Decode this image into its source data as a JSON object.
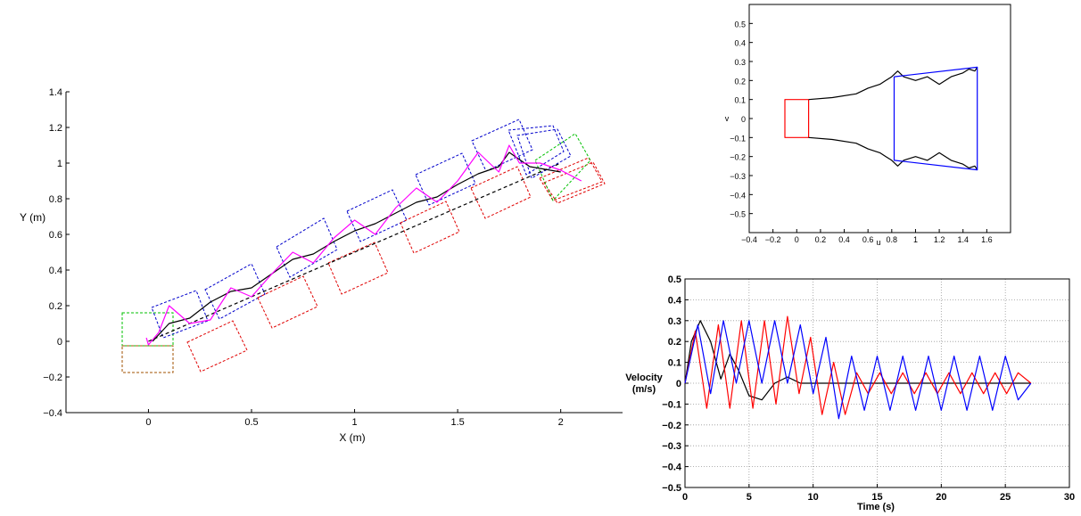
{
  "chart_data": [
    {
      "type": "line",
      "xlabel": "X (m)",
      "ylabel": "Y (m)",
      "xlim": [
        -0.4,
        2.3
      ],
      "ylim": [
        -0.4,
        1.4
      ],
      "xticks": [
        0,
        0.5,
        1,
        1.5,
        2
      ],
      "yticks": [
        -0.4,
        -0.2,
        0,
        0.2,
        0.4,
        0.6,
        0.8,
        1,
        1.2,
        1.4
      ],
      "grid": false,
      "series": [
        {
          "color": "#000000",
          "style": "solid",
          "desc": "x-y path",
          "x": [
            0.02,
            0.1,
            0.2,
            0.3,
            0.4,
            0.5,
            0.6,
            0.7,
            0.8,
            0.9,
            1.0,
            1.1,
            1.2,
            1.3,
            1.4,
            1.5,
            1.6,
            1.7,
            1.75,
            1.8,
            1.85,
            1.9,
            1.95,
            2.0
          ],
          "y": [
            0.0,
            0.1,
            0.13,
            0.22,
            0.28,
            0.3,
            0.38,
            0.46,
            0.49,
            0.56,
            0.62,
            0.66,
            0.72,
            0.78,
            0.81,
            0.88,
            0.94,
            0.98,
            1.06,
            1.02,
            0.98,
            0.97,
            0.96,
            0.95
          ]
        },
        {
          "color": "#000000",
          "style": "dashed",
          "x": [
            0.0,
            2.0
          ],
          "y": [
            0.0,
            1.0
          ]
        },
        {
          "color": "#ff00ff",
          "style": "solid",
          "x": [
            -0.01,
            0.0,
            0.05,
            0.1,
            0.2,
            0.3,
            0.4,
            0.5,
            0.6,
            0.7,
            0.8,
            0.9,
            1.0,
            1.1,
            1.2,
            1.3,
            1.4,
            1.5,
            1.6,
            1.7,
            1.75,
            1.8,
            1.9,
            2.0,
            2.1
          ],
          "y": [
            0.02,
            -0.02,
            0.05,
            0.2,
            0.1,
            0.12,
            0.3,
            0.25,
            0.38,
            0.5,
            0.44,
            0.58,
            0.68,
            0.6,
            0.75,
            0.86,
            0.78,
            0.9,
            1.06,
            0.95,
            1.1,
            1.0,
            1.0,
            0.96,
            0.9
          ]
        }
      ]
    },
    {
      "type": "line",
      "xlabel": "u",
      "ylabel": "v",
      "xlim": [
        -0.4,
        1.8
      ],
      "ylim": [
        -0.6,
        0.6
      ],
      "xticks": [
        -0.4,
        -0.2,
        0,
        0.2,
        0.4,
        0.6,
        0.8,
        1,
        1.2,
        1.4,
        1.6
      ],
      "yticks": [
        -0.5,
        -0.4,
        -0.3,
        -0.2,
        -0.1,
        0,
        0.1,
        0.2,
        0.3,
        0.4,
        0.5
      ],
      "grid": false,
      "series": [
        {
          "color": "#ff0000",
          "style": "solid",
          "x": [
            0.1,
            -0.1,
            -0.1,
            0.1,
            0.1
          ],
          "y": [
            0.1,
            0.1,
            -0.1,
            -0.1,
            0.1
          ]
        },
        {
          "color": "#000000",
          "style": "solid",
          "x": [
            0.1,
            0.3,
            0.5,
            0.6,
            0.7,
            0.75,
            0.8,
            0.85,
            0.9,
            1.0,
            1.1,
            1.2,
            1.3,
            1.4,
            1.45,
            1.5,
            1.52
          ],
          "y": [
            0.1,
            0.11,
            0.13,
            0.16,
            0.18,
            0.2,
            0.22,
            0.25,
            0.22,
            0.2,
            0.22,
            0.18,
            0.22,
            0.24,
            0.26,
            0.25,
            0.27
          ]
        },
        {
          "color": "#000000",
          "style": "solid",
          "x": [
            0.1,
            0.3,
            0.5,
            0.6,
            0.7,
            0.75,
            0.8,
            0.85,
            0.9,
            1.0,
            1.1,
            1.2,
            1.3,
            1.4,
            1.45,
            1.5,
            1.52
          ],
          "y": [
            -0.1,
            -0.11,
            -0.13,
            -0.16,
            -0.18,
            -0.2,
            -0.22,
            -0.25,
            -0.22,
            -0.2,
            -0.22,
            -0.18,
            -0.22,
            -0.24,
            -0.26,
            -0.25,
            -0.27
          ]
        },
        {
          "color": "#0000ff",
          "style": "solid",
          "x": [
            0.82,
            1.52,
            1.52,
            0.82,
            0.82
          ],
          "y": [
            0.22,
            0.27,
            -0.27,
            -0.22,
            0.22
          ]
        }
      ]
    },
    {
      "type": "line",
      "xlabel": "Time (s)",
      "ylabel": "Velocity\n(m/s)",
      "xlim": [
        0,
        30
      ],
      "ylim": [
        -0.5,
        0.5
      ],
      "xticks": [
        0,
        5,
        10,
        15,
        20,
        25,
        30
      ],
      "yticks": [
        -0.5,
        -0.4,
        -0.3,
        -0.2,
        -0.1,
        0,
        0.1,
        0.2,
        0.3,
        0.4,
        0.5
      ],
      "grid": true,
      "series": [
        {
          "color": "#000000",
          "style": "solid",
          "x": [
            0,
            0.5,
            1.2,
            2.0,
            2.8,
            3.5,
            4.2,
            5.0,
            6.0,
            7.0,
            8.0,
            9.0,
            10.0,
            12.0,
            27.0
          ],
          "y": [
            0.0,
            0.2,
            0.3,
            0.2,
            0.02,
            0.14,
            0.06,
            -0.06,
            -0.08,
            0.0,
            0.03,
            0.0,
            0.0,
            0.0,
            0.0
          ]
        },
        {
          "color": "#ff0000",
          "style": "solid",
          "x": [
            0,
            0.8,
            1.7,
            2.6,
            3.5,
            4.4,
            5.3,
            6.2,
            7.1,
            8.0,
            8.9,
            9.8,
            10.7,
            11.6,
            12.5,
            13.4,
            14.3,
            15.2,
            16.1,
            17.0,
            17.9,
            18.8,
            19.7,
            20.6,
            21.5,
            22.4,
            23.3,
            24.2,
            25.1,
            26.0,
            27.0
          ],
          "y": [
            0.0,
            0.25,
            -0.12,
            0.28,
            -0.12,
            0.3,
            -0.12,
            0.3,
            -0.1,
            0.32,
            -0.05,
            0.22,
            -0.15,
            0.1,
            -0.15,
            0.05,
            -0.05,
            0.05,
            -0.05,
            0.05,
            -0.05,
            0.05,
            -0.05,
            0.05,
            -0.05,
            0.05,
            -0.05,
            0.05,
            -0.05,
            0.05,
            0.0
          ]
        },
        {
          "color": "#0000ff",
          "style": "solid",
          "x": [
            0,
            1.0,
            2.0,
            3.0,
            4.0,
            5.0,
            6.0,
            7.0,
            8.0,
            9.0,
            10.0,
            11.0,
            12.0,
            13.0,
            14.0,
            15.0,
            16.0,
            17.0,
            18.0,
            19.0,
            20.0,
            21.0,
            22.0,
            23.0,
            24.0,
            25.0,
            26.0,
            27.0
          ],
          "y": [
            0.0,
            0.28,
            -0.05,
            0.3,
            0.0,
            0.3,
            0.0,
            0.3,
            0.0,
            0.28,
            -0.05,
            0.22,
            -0.17,
            0.13,
            -0.13,
            0.13,
            -0.13,
            0.13,
            -0.13,
            0.13,
            -0.13,
            0.13,
            -0.13,
            0.13,
            -0.13,
            0.13,
            -0.08,
            0.0
          ]
        }
      ]
    }
  ]
}
